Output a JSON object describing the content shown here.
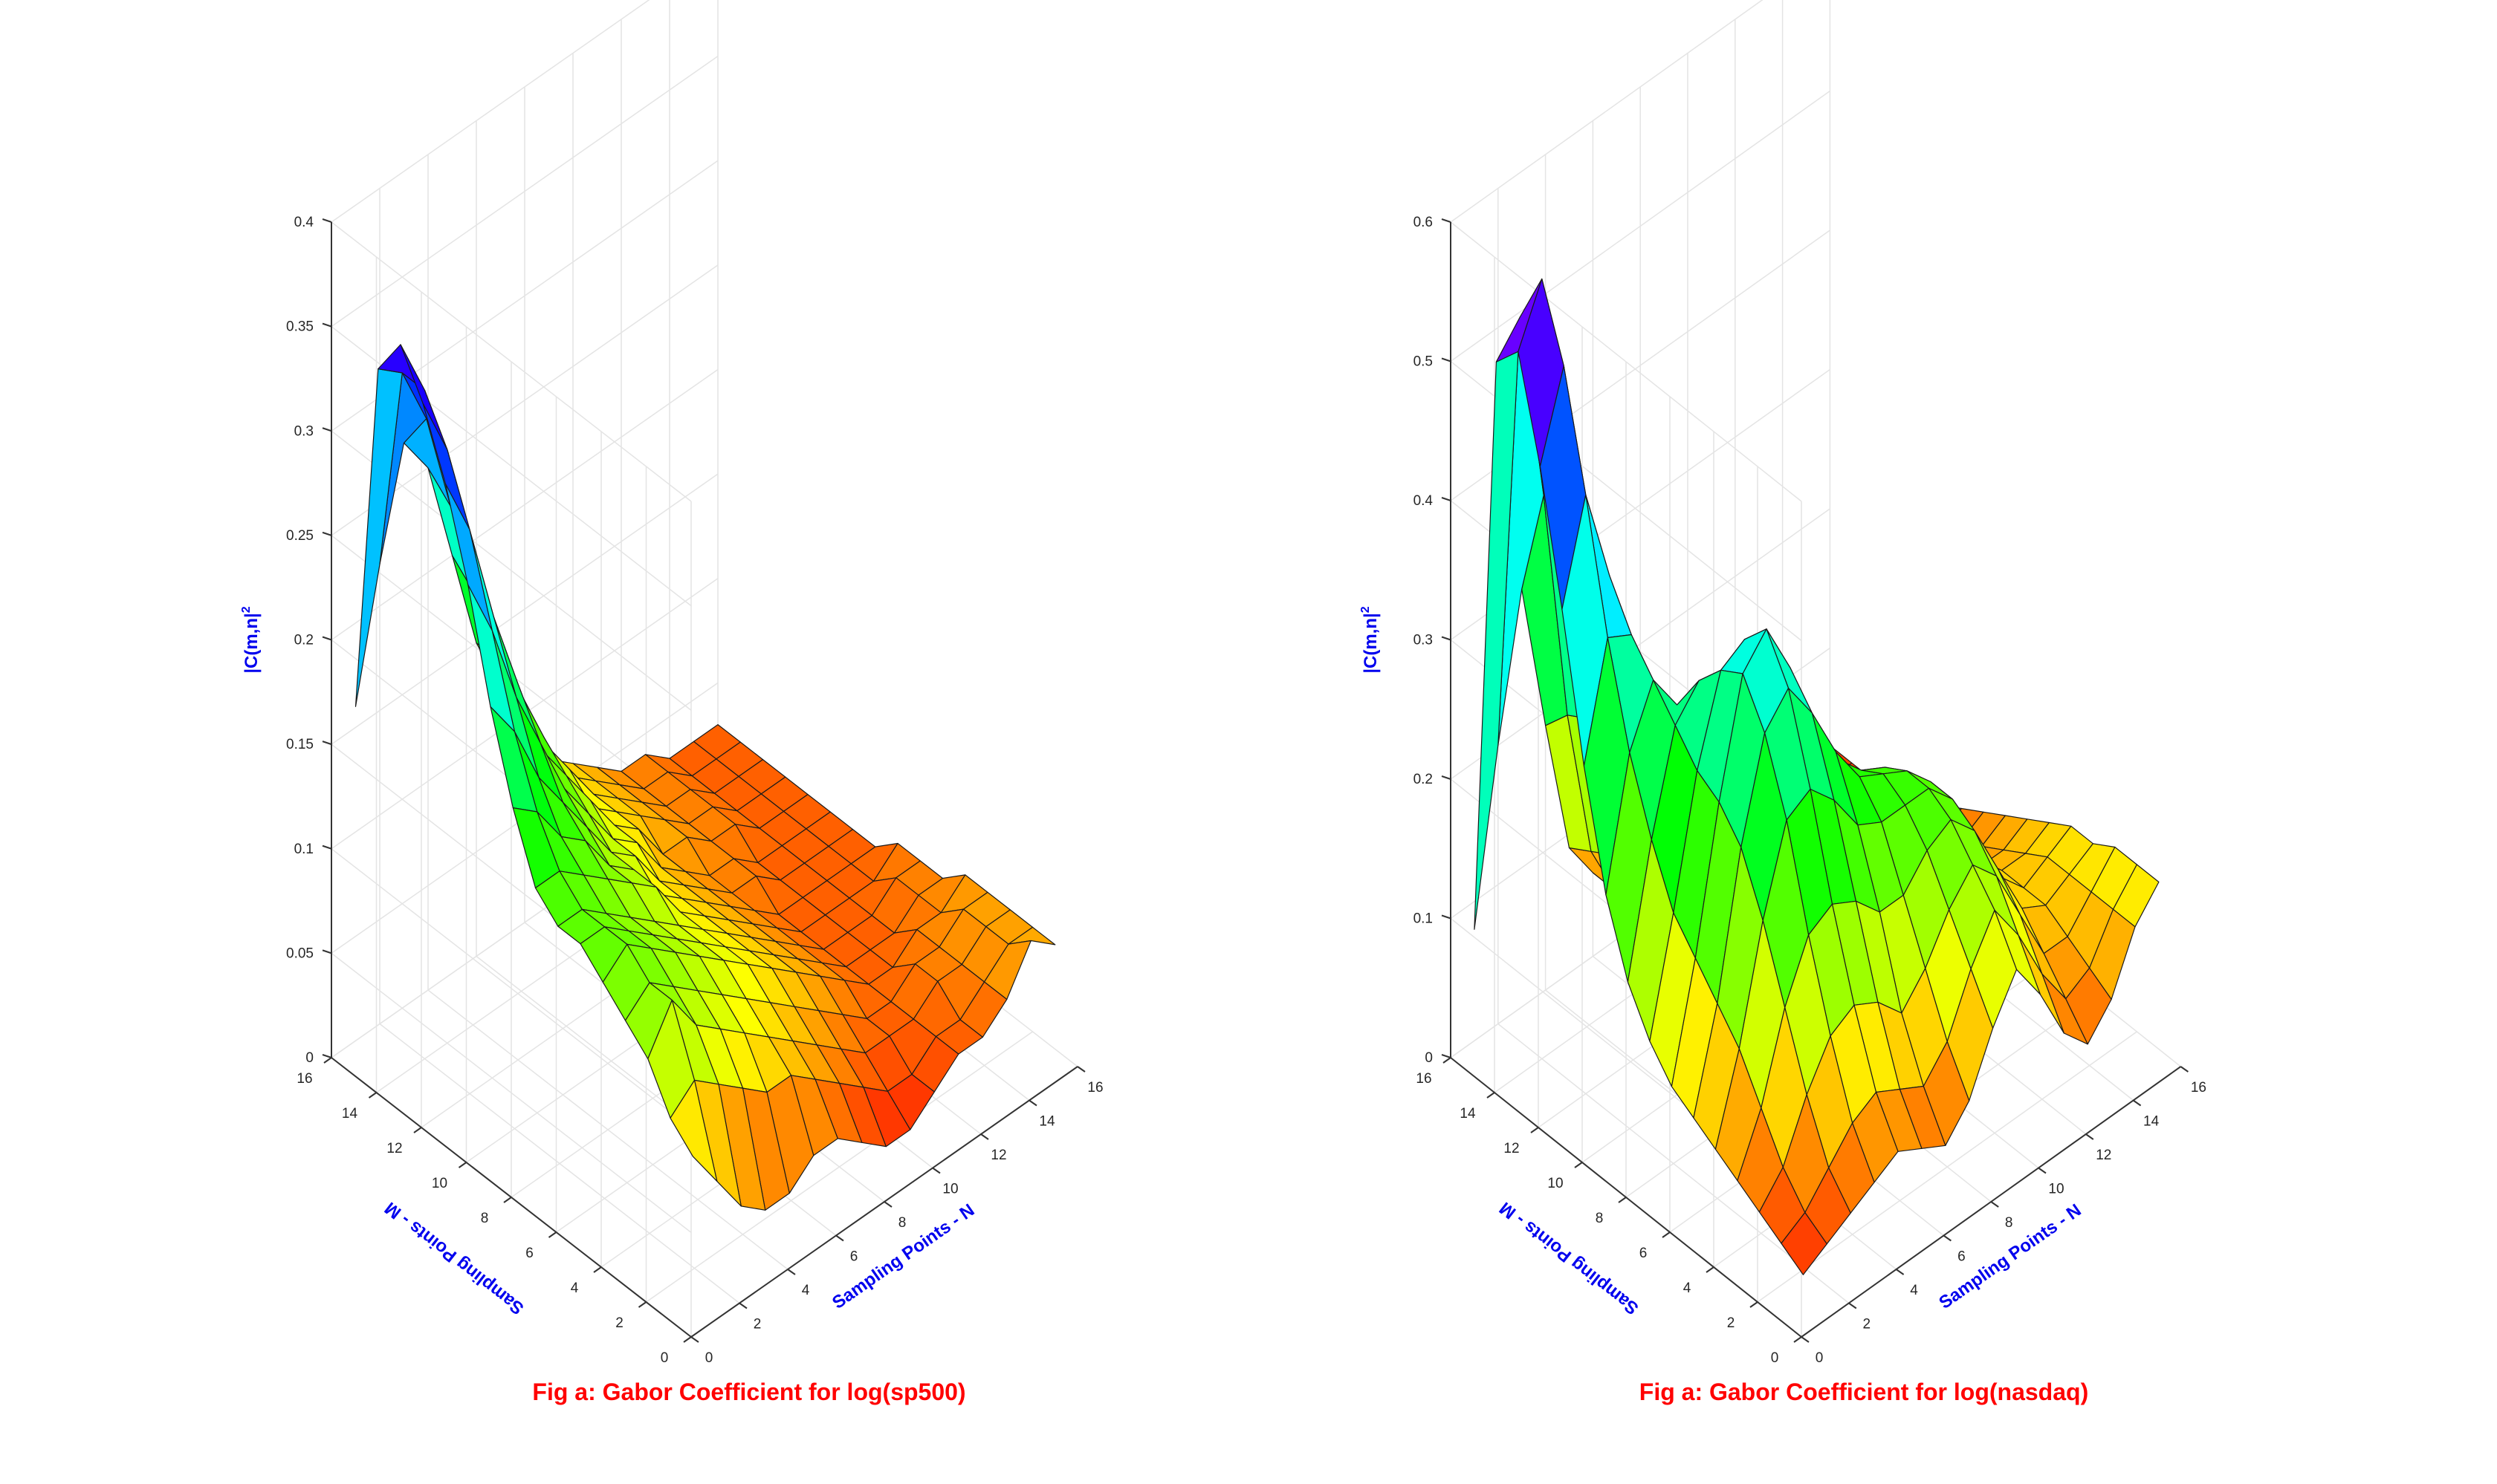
{
  "chart_data": [
    {
      "type": "surface",
      "caption": "Fig a: Gabor Coefficient for log(sp500)",
      "xlabel": "Sampling Points - N",
      "ylabel": "Sampling Points - M",
      "zlabel": "|C(m,n|2",
      "zlabel_main": "|C(m,n|",
      "zlabel_sup": "2",
      "xlim": [
        0,
        16
      ],
      "ylim": [
        0,
        16
      ],
      "zlim": [
        0,
        0.4
      ],
      "xticks": [
        "0",
        "2",
        "4",
        "6",
        "8",
        "10",
        "12",
        "14",
        "16"
      ],
      "yticks": [
        "0",
        "2",
        "4",
        "6",
        "8",
        "10",
        "12",
        "14",
        "16"
      ],
      "zticks": [
        "0",
        "0.05",
        "0.1",
        "0.15",
        "0.2",
        "0.25",
        "0.3",
        "0.35",
        "0.4"
      ],
      "grid": true,
      "colormap": "hsv",
      "n_points": [
        1,
        2,
        3,
        4,
        5,
        6,
        7,
        8,
        9,
        10,
        11,
        12,
        13,
        14,
        15,
        16
      ],
      "m_points": [
        1,
        2,
        3,
        4,
        5,
        6,
        7,
        8,
        9,
        10,
        11,
        12,
        13,
        14,
        15,
        16
      ],
      "z_by_m": [
        [
          0.07,
          0.05,
          0.03,
          0.02,
          0.02,
          0.03,
          0.03,
          0.02,
          0.01,
          0.01,
          0.02,
          0.03,
          0.03,
          0.04,
          0.06,
          0.05
        ],
        [
          0.08,
          0.09,
          0.08,
          0.07,
          0.06,
          0.06,
          0.05,
          0.04,
          0.03,
          0.02,
          0.02,
          0.03,
          0.03,
          0.04,
          0.05,
          0.05
        ],
        [
          0.1,
          0.12,
          0.1,
          0.09,
          0.08,
          0.07,
          0.06,
          0.05,
          0.04,
          0.03,
          0.03,
          0.03,
          0.04,
          0.04,
          0.05,
          0.05
        ],
        [
          0.11,
          0.12,
          0.11,
          0.1,
          0.09,
          0.08,
          0.07,
          0.06,
          0.05,
          0.04,
          0.03,
          0.03,
          0.04,
          0.04,
          0.05,
          0.05
        ],
        [
          0.12,
          0.13,
          0.12,
          0.11,
          0.1,
          0.09,
          0.08,
          0.07,
          0.06,
          0.05,
          0.04,
          0.03,
          0.03,
          0.04,
          0.04,
          0.05
        ],
        [
          0.13,
          0.13,
          0.12,
          0.11,
          0.1,
          0.09,
          0.08,
          0.07,
          0.06,
          0.05,
          0.04,
          0.03,
          0.03,
          0.03,
          0.04,
          0.04
        ],
        [
          0.13,
          0.13,
          0.12,
          0.11,
          0.1,
          0.09,
          0.08,
          0.07,
          0.06,
          0.05,
          0.04,
          0.03,
          0.03,
          0.03,
          0.04,
          0.04
        ],
        [
          0.14,
          0.14,
          0.13,
          0.12,
          0.11,
          0.1,
          0.08,
          0.07,
          0.06,
          0.05,
          0.04,
          0.03,
          0.03,
          0.03,
          0.03,
          0.04
        ],
        [
          0.17,
          0.16,
          0.14,
          0.13,
          0.11,
          0.1,
          0.08,
          0.07,
          0.06,
          0.05,
          0.04,
          0.03,
          0.03,
          0.03,
          0.03,
          0.03
        ],
        [
          0.21,
          0.19,
          0.16,
          0.14,
          0.12,
          0.1,
          0.09,
          0.07,
          0.06,
          0.05,
          0.04,
          0.04,
          0.03,
          0.03,
          0.03,
          0.03
        ],
        [
          0.26,
          0.23,
          0.19,
          0.16,
          0.13,
          0.11,
          0.09,
          0.08,
          0.06,
          0.05,
          0.04,
          0.04,
          0.03,
          0.03,
          0.03,
          0.03
        ],
        [
          0.3,
          0.27,
          0.22,
          0.18,
          0.14,
          0.12,
          0.1,
          0.08,
          0.07,
          0.05,
          0.05,
          0.04,
          0.04,
          0.03,
          0.03,
          0.03
        ],
        [
          0.33,
          0.3,
          0.25,
          0.2,
          0.16,
          0.13,
          0.1,
          0.08,
          0.07,
          0.06,
          0.05,
          0.04,
          0.04,
          0.03,
          0.03,
          0.03
        ],
        [
          0.35,
          0.32,
          0.28,
          0.22,
          0.18,
          0.14,
          0.11,
          0.09,
          0.07,
          0.06,
          0.05,
          0.04,
          0.04,
          0.03,
          0.03,
          0.03
        ],
        [
          0.33,
          0.32,
          0.29,
          0.24,
          0.19,
          0.15,
          0.11,
          0.09,
          0.07,
          0.06,
          0.05,
          0.04,
          0.04,
          0.03,
          0.03,
          0.03
        ],
        [
          0.16,
          0.22,
          0.27,
          0.25,
          0.2,
          0.15,
          0.12,
          0.09,
          0.07,
          0.06,
          0.05,
          0.04,
          0.04,
          0.03,
          0.03,
          0.03
        ]
      ]
    },
    {
      "type": "surface",
      "caption": "Fig a: Gabor Coefficient for log(nasdaq)",
      "xlabel": "Sampling Points - N",
      "ylabel": "Sampling Points - M",
      "zlabel": "|C(m,n|2",
      "zlabel_main": "|C(m,n|",
      "zlabel_sup": "2",
      "xlim": [
        0,
        16
      ],
      "ylim": [
        0,
        16
      ],
      "zlim": [
        0,
        0.6
      ],
      "xticks": [
        "0",
        "2",
        "4",
        "6",
        "8",
        "10",
        "12",
        "14",
        "16"
      ],
      "yticks": [
        "0",
        "2",
        "4",
        "6",
        "8",
        "10",
        "12",
        "14",
        "16"
      ],
      "zticks": [
        "0",
        "0.1",
        "0.2",
        "0.3",
        "0.4",
        "0.5",
        "0.6"
      ],
      "grid": true,
      "colormap": "hsv",
      "n_points": [
        1,
        2,
        3,
        4,
        5,
        6,
        7,
        8,
        9,
        10,
        11,
        12,
        13,
        14,
        15,
        16
      ],
      "m_points": [
        1,
        2,
        3,
        4,
        5,
        6,
        7,
        8,
        9,
        10,
        11,
        12,
        13,
        14,
        15,
        16
      ],
      "z_by_m": [
        [
          0.02,
          0.03,
          0.04,
          0.05,
          0.06,
          0.05,
          0.04,
          0.06,
          0.1,
          0.13,
          0.1,
          0.06,
          0.04,
          0.06,
          0.1,
          0.12
        ],
        [
          0.03,
          0.04,
          0.06,
          0.08,
          0.09,
          0.08,
          0.07,
          0.09,
          0.13,
          0.16,
          0.13,
          0.09,
          0.06,
          0.07,
          0.1,
          0.12
        ],
        [
          0.04,
          0.06,
          0.1,
          0.13,
          0.14,
          0.13,
          0.11,
          0.13,
          0.16,
          0.18,
          0.16,
          0.12,
          0.08,
          0.08,
          0.1,
          0.12
        ],
        [
          0.05,
          0.09,
          0.15,
          0.19,
          0.2,
          0.19,
          0.17,
          0.17,
          0.19,
          0.2,
          0.18,
          0.14,
          0.1,
          0.09,
          0.1,
          0.11
        ],
        [
          0.06,
          0.12,
          0.2,
          0.26,
          0.27,
          0.25,
          0.22,
          0.21,
          0.21,
          0.21,
          0.19,
          0.15,
          0.11,
          0.09,
          0.1,
          0.11
        ],
        [
          0.07,
          0.14,
          0.24,
          0.31,
          0.33,
          0.3,
          0.26,
          0.23,
          0.22,
          0.21,
          0.19,
          0.15,
          0.11,
          0.09,
          0.09,
          0.1
        ],
        [
          0.08,
          0.16,
          0.26,
          0.34,
          0.36,
          0.32,
          0.27,
          0.23,
          0.21,
          0.2,
          0.18,
          0.14,
          0.1,
          0.08,
          0.08,
          0.09
        ],
        [
          0.1,
          0.18,
          0.27,
          0.33,
          0.34,
          0.3,
          0.25,
          0.21,
          0.19,
          0.18,
          0.16,
          0.12,
          0.09,
          0.07,
          0.07,
          0.08
        ],
        [
          0.13,
          0.22,
          0.29,
          0.31,
          0.3,
          0.26,
          0.21,
          0.18,
          0.16,
          0.15,
          0.13,
          0.1,
          0.07,
          0.06,
          0.06,
          0.07
        ],
        [
          0.18,
          0.27,
          0.31,
          0.28,
          0.24,
          0.2,
          0.16,
          0.14,
          0.13,
          0.12,
          0.1,
          0.08,
          0.06,
          0.05,
          0.05,
          0.06
        ],
        [
          0.26,
          0.34,
          0.33,
          0.25,
          0.18,
          0.14,
          0.12,
          0.1,
          0.1,
          0.09,
          0.08,
          0.06,
          0.05,
          0.04,
          0.04,
          0.05
        ],
        [
          0.36,
          0.43,
          0.36,
          0.23,
          0.14,
          0.1,
          0.08,
          0.08,
          0.08,
          0.07,
          0.06,
          0.05,
          0.04,
          0.04,
          0.04,
          0.04
        ],
        [
          0.45,
          0.51,
          0.38,
          0.22,
          0.12,
          0.08,
          0.07,
          0.06,
          0.06,
          0.06,
          0.05,
          0.04,
          0.04,
          0.03,
          0.03,
          0.04
        ],
        [
          0.52,
          0.56,
          0.4,
          0.22,
          0.11,
          0.07,
          0.06,
          0.05,
          0.05,
          0.05,
          0.04,
          0.04,
          0.03,
          0.03,
          0.03,
          0.03
        ],
        [
          0.5,
          0.52,
          0.38,
          0.21,
          0.1,
          0.06,
          0.05,
          0.05,
          0.04,
          0.04,
          0.04,
          0.03,
          0.03,
          0.03,
          0.03,
          0.03
        ],
        [
          0.08,
          0.2,
          0.3,
          0.19,
          0.09,
          0.06,
          0.05,
          0.04,
          0.04,
          0.04,
          0.03,
          0.03,
          0.03,
          0.03,
          0.03,
          0.03
        ]
      ]
    }
  ]
}
